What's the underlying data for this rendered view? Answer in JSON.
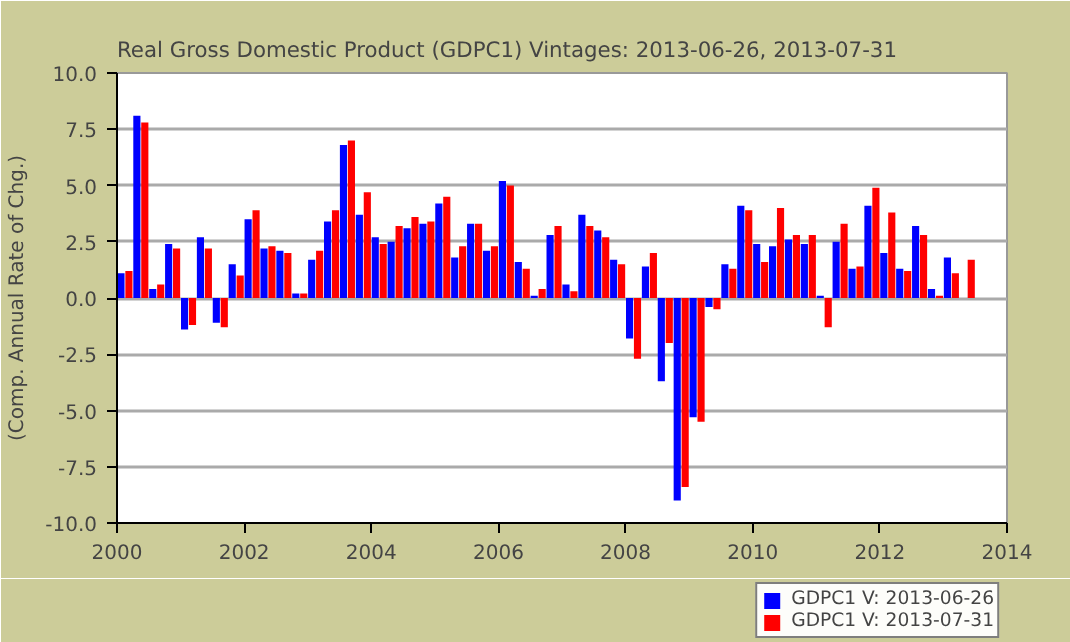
{
  "chart_data": {
    "type": "bar",
    "title": "Real Gross Domestic Product (GDPC1) Vintages: 2013-06-26, 2013-07-31",
    "ylabel": "(Comp. Annual Rate of Chg.)",
    "x": [
      2000.125,
      2000.375,
      2000.625,
      2000.875,
      2001.125,
      2001.375,
      2001.625,
      2001.875,
      2002.125,
      2002.375,
      2002.625,
      2002.875,
      2003.125,
      2003.375,
      2003.625,
      2003.875,
      2004.125,
      2004.375,
      2004.625,
      2004.875,
      2005.125,
      2005.375,
      2005.625,
      2005.875,
      2006.125,
      2006.375,
      2006.625,
      2006.875,
      2007.125,
      2007.375,
      2007.625,
      2007.875,
      2008.125,
      2008.375,
      2008.625,
      2008.875,
      2009.125,
      2009.375,
      2009.625,
      2009.875,
      2010.125,
      2010.375,
      2010.625,
      2010.875,
      2011.125,
      2011.375,
      2011.625,
      2011.875,
      2012.125,
      2012.375,
      2012.625,
      2012.875,
      2013.125,
      2013.375
    ],
    "series": [
      {
        "name": "GDPC1 V: 2013-06-26",
        "color": "#0000ff",
        "values": [
          1.1,
          8.1,
          0.4,
          2.4,
          -1.4,
          2.7,
          -1.1,
          1.5,
          3.5,
          2.2,
          2.1,
          0.2,
          1.7,
          3.4,
          6.8,
          3.7,
          2.7,
          2.5,
          3.1,
          3.3,
          4.2,
          1.8,
          3.3,
          2.1,
          5.2,
          1.6,
          0.1,
          2.8,
          0.6,
          3.7,
          3.0,
          1.7,
          -1.8,
          1.4,
          -3.7,
          -9.0,
          -5.3,
          -0.4,
          1.5,
          4.1,
          2.4,
          2.3,
          2.6,
          2.4,
          0.1,
          2.5,
          1.3,
          4.1,
          2.0,
          1.3,
          3.2,
          0.4,
          1.8,
          null
        ]
      },
      {
        "name": "GDPC1 V: 2013-07-31",
        "color": "#ff0000",
        "values": [
          1.2,
          7.8,
          0.6,
          2.2,
          -1.2,
          2.2,
          -1.3,
          1.0,
          3.9,
          2.3,
          2.0,
          0.2,
          2.1,
          3.9,
          7.0,
          4.7,
          2.4,
          3.2,
          3.6,
          3.4,
          4.5,
          2.3,
          3.3,
          2.3,
          5.0,
          1.3,
          0.4,
          3.2,
          0.3,
          3.2,
          2.7,
          1.5,
          -2.7,
          2.0,
          -2.0,
          -8.4,
          -5.5,
          -0.5,
          1.3,
          3.9,
          1.6,
          4.0,
          2.8,
          2.8,
          -1.3,
          3.3,
          1.4,
          4.9,
          3.8,
          1.2,
          2.8,
          0.1,
          1.1,
          1.7
        ]
      }
    ],
    "xlim": [
      2000,
      2014
    ],
    "xticks": [
      2000,
      2002,
      2004,
      2006,
      2008,
      2010,
      2012,
      2014
    ],
    "ylim": [
      -10,
      10
    ],
    "yticks": [
      {
        "value": -10,
        "label": "-10.0"
      },
      {
        "value": -7.5,
        "label": "-7.5"
      },
      {
        "value": -5,
        "label": "-5.0"
      },
      {
        "value": -2.5,
        "label": "-2.5"
      },
      {
        "value": 0,
        "label": "0.0"
      },
      {
        "value": 2.5,
        "label": "2.5"
      },
      {
        "value": 5,
        "label": "5.0"
      },
      {
        "value": 7.5,
        "label": "7.5"
      },
      {
        "value": 10,
        "label": "10.0"
      }
    ],
    "grid": "y",
    "legend": "bottom right"
  }
}
